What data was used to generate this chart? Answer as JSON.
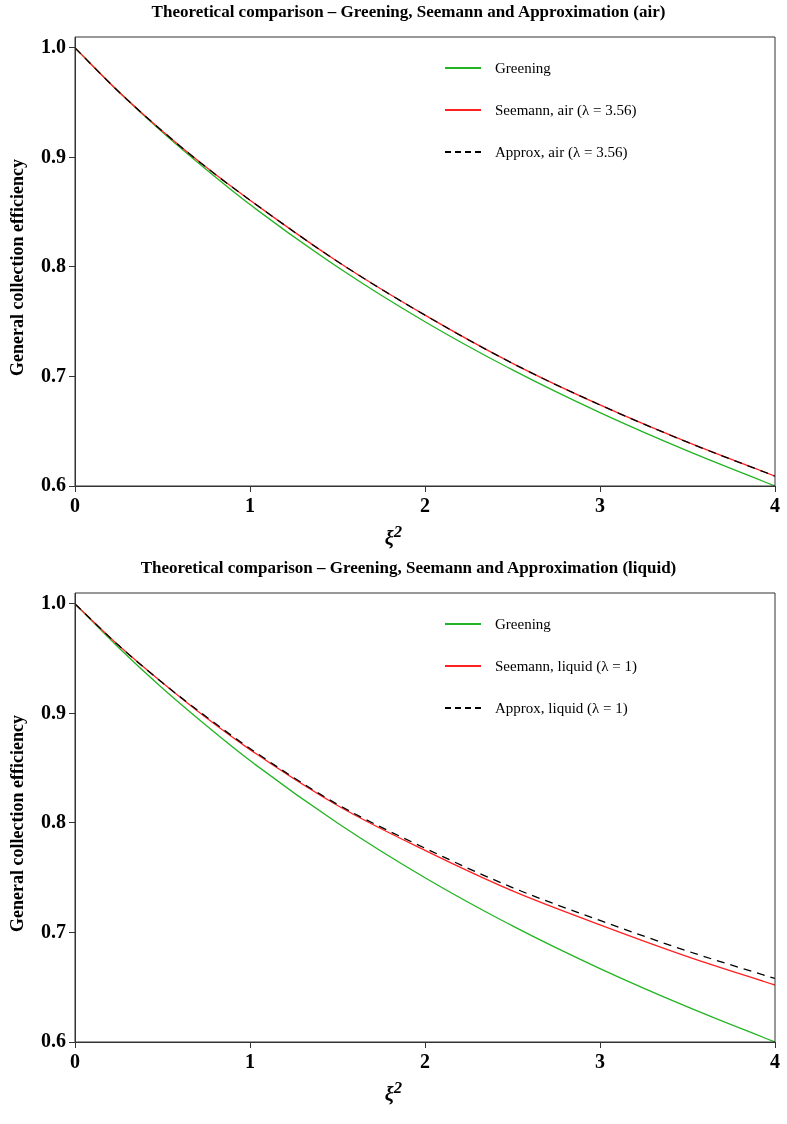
{
  "chart_data": [
    {
      "type": "line",
      "title": "Theoretical comparison – Greening, Seemann and Approximation (air)",
      "xlabel": "ξ$^{2}$",
      "ylabel": "General collection efficiency",
      "x": [
        0,
        0.25,
        0.5,
        0.75,
        1,
        1.5,
        2,
        2.5,
        3,
        3.5,
        4
      ],
      "xlim": [
        0,
        4
      ],
      "xticks": [
        0,
        1,
        2,
        3,
        4
      ],
      "ylim": [
        0.6,
        1.01
      ],
      "yticks": [
        0.6,
        0.7,
        0.8,
        0.9,
        {
          "value": 1,
          "label": "1.0"
        }
      ],
      "grid": false,
      "legend": "top right",
      "marker": "none",
      "series": [
        {
          "name": "Greening",
          "color": "#22b422",
          "line_style": "solid",
          "values": [
            1,
            0.96,
            0.923,
            0.889,
            0.857,
            0.8,
            0.75,
            0.706,
            0.667,
            0.632,
            0.6
          ]
        },
        {
          "name": "Seemann, air (λ = 3.56)",
          "color": "#ff2020",
          "line_style": "solid",
          "values": [
            1,
            0.96,
            0.924,
            0.891,
            0.861,
            0.805,
            0.756,
            0.712,
            0.674,
            0.64,
            0.609
          ]
        },
        {
          "name": "Approx, air (λ = 3.56)",
          "color": "#000000",
          "line_style": "dashed",
          "values": [
            1,
            0.96,
            0.924,
            0.891,
            0.861,
            0.805,
            0.756,
            0.712,
            0.674,
            0.64,
            0.609
          ]
        }
      ]
    },
    {
      "type": "line",
      "title": "Theoretical comparison – Greening, Seemann and Approximation (liquid)",
      "xlabel": "ξ$^{2}$",
      "ylabel": "General collection efficiency",
      "x": [
        0,
        0.25,
        0.5,
        0.75,
        1,
        1.5,
        2,
        2.5,
        3,
        3.5,
        4
      ],
      "xlim": [
        0,
        4
      ],
      "xticks": [
        0,
        1,
        2,
        3,
        4
      ],
      "ylim": [
        0.6,
        1.01
      ],
      "yticks": [
        0.6,
        0.7,
        0.8,
        0.9,
        {
          "value": 1,
          "label": "1.0"
        }
      ],
      "grid": false,
      "legend": "top right",
      "marker": "none",
      "series": [
        {
          "name": "Greening",
          "color": "#22b422",
          "line_style": "solid",
          "values": [
            1,
            0.96,
            0.923,
            0.889,
            0.857,
            0.8,
            0.75,
            0.706,
            0.667,
            0.632,
            0.6
          ]
        },
        {
          "name": "Seemann, liquid (λ = 1)",
          "color": "#ff2020",
          "line_style": "solid",
          "values": [
            1,
            0.962,
            0.928,
            0.896,
            0.867,
            0.816,
            0.775,
            0.738,
            0.707,
            0.678,
            0.652
          ]
        },
        {
          "name": "Approx, liquid (λ = 1)",
          "color": "#000000",
          "line_style": "dashed",
          "values": [
            1,
            0.962,
            0.928,
            0.897,
            0.868,
            0.817,
            0.777,
            0.741,
            0.711,
            0.683,
            0.658
          ]
        }
      ]
    }
  ]
}
